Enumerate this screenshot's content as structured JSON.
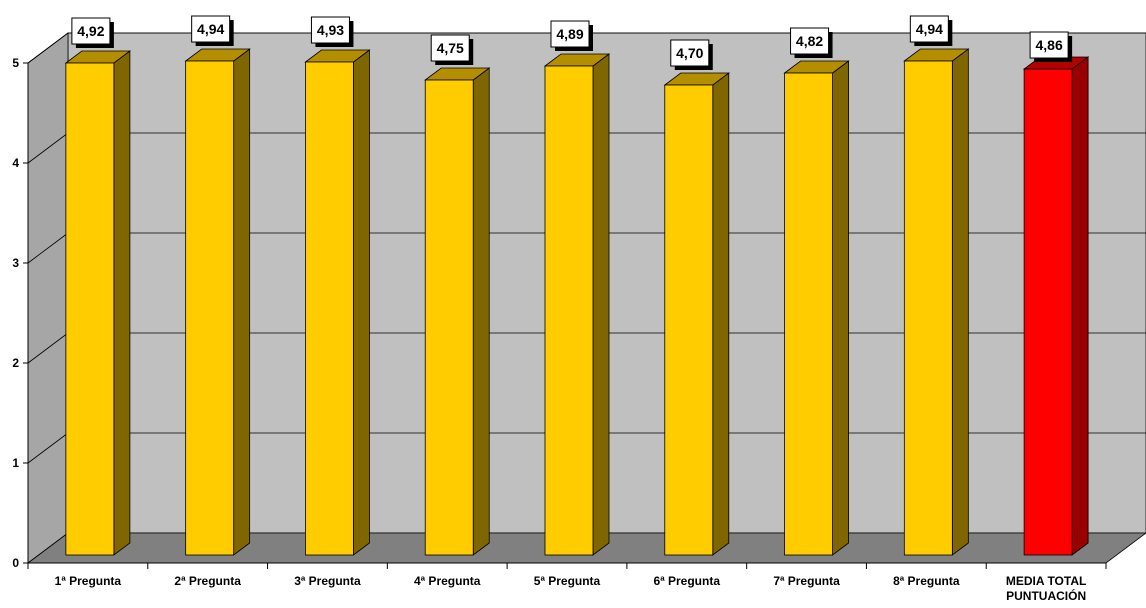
{
  "chart_data": {
    "type": "bar",
    "categories": [
      "1ª Pregunta",
      "2ª Pregunta",
      "3ª Pregunta",
      "4ª Pregunta",
      "5ª Pregunta",
      "6ª Pregunta",
      "7ª Pregunta",
      "8ª Pregunta",
      "MEDIA TOTAL PUNTUACIÓN"
    ],
    "category_lines": [
      [
        "1ª Pregunta"
      ],
      [
        "2ª Pregunta"
      ],
      [
        "3ª Pregunta"
      ],
      [
        "4ª Pregunta"
      ],
      [
        "5ª Pregunta"
      ],
      [
        "6ª Pregunta"
      ],
      [
        "7ª Pregunta"
      ],
      [
        "8ª Pregunta"
      ],
      [
        "MEDIA TOTAL",
        "PUNTUACIÓN"
      ]
    ],
    "values": [
      4.92,
      4.94,
      4.93,
      4.75,
      4.89,
      4.7,
      4.82,
      4.94,
      4.86
    ],
    "data_labels": [
      "4,92",
      "4,94",
      "4,93",
      "4,75",
      "4,89",
      "4,70",
      "4,82",
      "4,94",
      "4,86"
    ],
    "ylim": [
      0,
      5
    ],
    "yticks": [
      0,
      1,
      2,
      3,
      4,
      5
    ],
    "ytick_labels": [
      "0",
      "1",
      "2",
      "3",
      "4",
      "5"
    ],
    "grid": true,
    "style": "3d",
    "colors": {
      "bar_front": "#FFCC00",
      "bar_side": "#806600",
      "bar_top": "#B38F00",
      "highlight_front": "#FF0000",
      "highlight_side": "#990000",
      "highlight_top": "#B30000",
      "wall": "#C0C0C0",
      "floor": "#808080",
      "side_wall": "#A6A6A6"
    },
    "highlight_index": 8
  }
}
